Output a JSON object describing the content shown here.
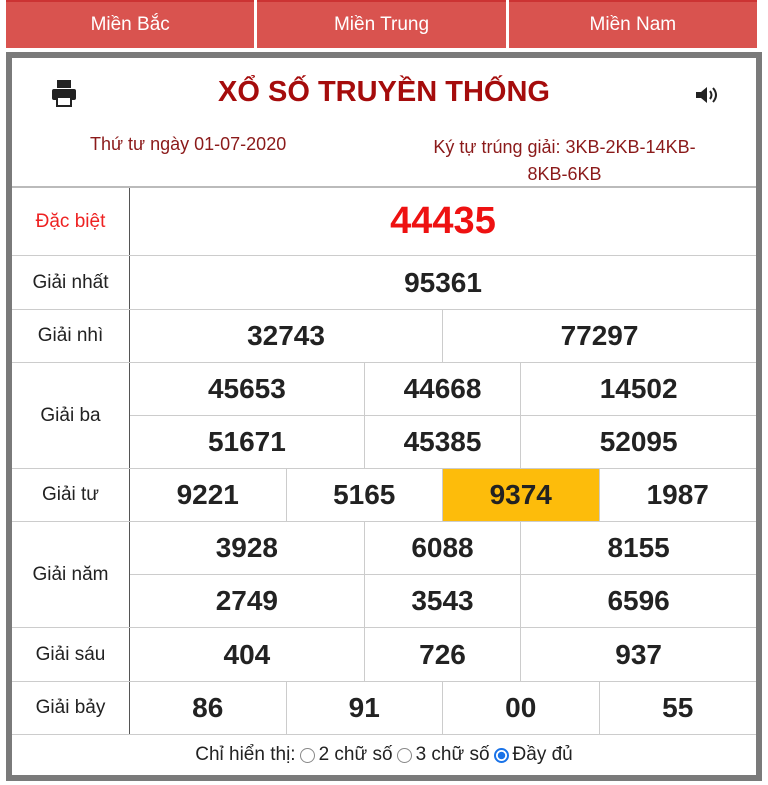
{
  "tabs": [
    {
      "label": "Miền Bắc"
    },
    {
      "label": "Miền Trung"
    },
    {
      "label": "Miền Nam"
    }
  ],
  "header": {
    "title": "XỔ SỐ TRUYỀN THỐNG",
    "date": "Thứ tư ngày 01-07-2020",
    "code_line1": "Ký tự trúng giải: 3KB-2KB-14KB-",
    "code_line2": "8KB-6KB",
    "print_icon": "printer-icon",
    "sound_icon": "speaker-icon"
  },
  "prizes": {
    "db": {
      "label": "Đặc biệt",
      "values": [
        "44435"
      ]
    },
    "g1": {
      "label": "Giải nhất",
      "values": [
        "95361"
      ]
    },
    "g2": {
      "label": "Giải nhì",
      "values": [
        "32743",
        "77297"
      ]
    },
    "g3": {
      "label": "Giải ba",
      "values": [
        "45653",
        "44668",
        "14502",
        "51671",
        "45385",
        "52095"
      ]
    },
    "g4": {
      "label": "Giải tư",
      "values": [
        "9221",
        "5165",
        "9374",
        "1987"
      ]
    },
    "g5": {
      "label": "Giải năm",
      "values": [
        "3928",
        "6088",
        "8155",
        "2749",
        "3543",
        "6596"
      ]
    },
    "g6": {
      "label": "Giải sáu",
      "values": [
        "404",
        "726",
        "937"
      ]
    },
    "g7": {
      "label": "Giải bảy",
      "values": [
        "86",
        "91",
        "00",
        "55"
      ]
    }
  },
  "footer": {
    "label": "Chỉ hiển thị:",
    "options": [
      "2 chữ số",
      "3 chữ số",
      "Đầy đủ"
    ],
    "selected": "Đầy đủ"
  },
  "colors": {
    "tab": "#d9534f",
    "title": "#a50c0c",
    "special": "#ee1111",
    "highlight": "#fdbc0b"
  }
}
